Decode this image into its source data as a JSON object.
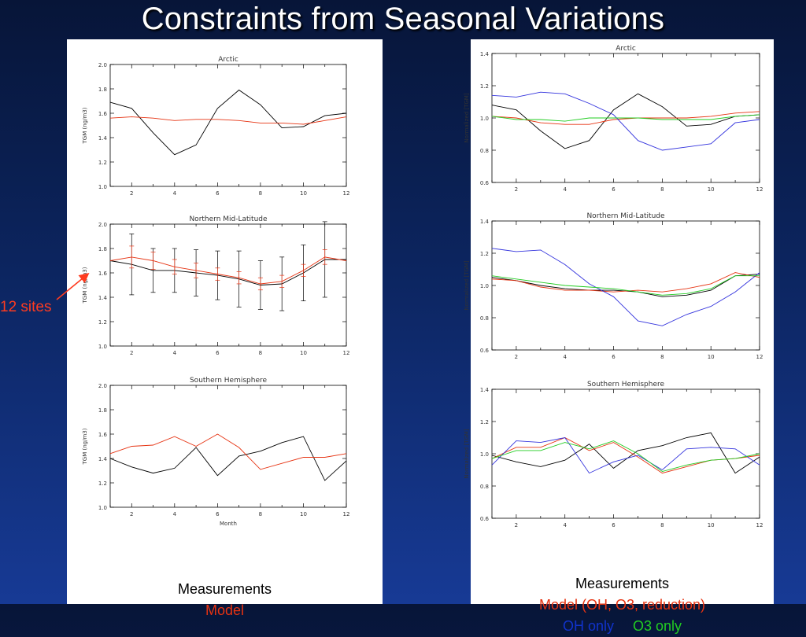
{
  "title": "Constraints from Seasonal Variations",
  "annotation": {
    "label": "12 sites"
  },
  "legends": {
    "left": {
      "line1": "Measurements",
      "line2": "Model"
    },
    "right": {
      "line1": "Measurements",
      "line2": "Model (OH, O3, reduction)",
      "oh": "OH only",
      "o3": "O3 only"
    }
  },
  "colors": {
    "measurements": "#000000",
    "model": "#e63312",
    "oh_only": "#3333dd",
    "o3_only": "#22cc22"
  },
  "chart_data": [
    {
      "type": "line",
      "title": "Arctic",
      "xlabel": "",
      "ylabel": "TGM (ng/m3)",
      "xlim": [
        1,
        12
      ],
      "ylim": [
        1.0,
        2.0
      ],
      "xticks": [
        2,
        4,
        6,
        8,
        10,
        12
      ],
      "yticks": [
        1.0,
        1.2,
        1.4,
        1.6,
        1.8,
        2.0
      ],
      "ytick_decimals": 1,
      "x": [
        1,
        2,
        3,
        4,
        5,
        6,
        7,
        8,
        9,
        10,
        11,
        12
      ],
      "series": [
        {
          "color": "#000000",
          "values": [
            1.69,
            1.64,
            1.44,
            1.26,
            1.34,
            1.64,
            1.79,
            1.67,
            1.48,
            1.49,
            1.58,
            1.6
          ]
        },
        {
          "color": "#e63312",
          "values": [
            1.56,
            1.57,
            1.56,
            1.54,
            1.55,
            1.55,
            1.54,
            1.52,
            1.52,
            1.51,
            1.54,
            1.57
          ]
        }
      ]
    },
    {
      "type": "line",
      "title": "Northern Mid-Latitude",
      "xlabel": "",
      "ylabel": "TGM (ng/m3)",
      "xlim": [
        1,
        12
      ],
      "ylim": [
        1.0,
        2.0
      ],
      "xticks": [
        2,
        4,
        6,
        8,
        10,
        12
      ],
      "yticks": [
        1.0,
        1.2,
        1.4,
        1.6,
        1.8,
        2.0
      ],
      "ytick_decimals": 1,
      "x": [
        1,
        2,
        3,
        4,
        5,
        6,
        7,
        8,
        9,
        10,
        11,
        12
      ],
      "series": [
        {
          "color": "#000000",
          "values": [
            1.7,
            1.67,
            1.62,
            1.62,
            1.6,
            1.58,
            1.55,
            1.5,
            1.51,
            1.6,
            1.71,
            1.71
          ],
          "errors": [
            0,
            0.25,
            0.18,
            0.18,
            0.19,
            0.2,
            0.23,
            0.2,
            0.22,
            0.23,
            0.31,
            0
          ]
        },
        {
          "color": "#e63312",
          "values": [
            1.7,
            1.73,
            1.7,
            1.65,
            1.62,
            1.59,
            1.56,
            1.51,
            1.53,
            1.62,
            1.73,
            1.7
          ],
          "errors": [
            0,
            0.09,
            0.07,
            0.06,
            0.06,
            0.05,
            0.05,
            0.05,
            0.05,
            0.05,
            0.06,
            0
          ]
        }
      ]
    },
    {
      "type": "line",
      "title": "Southern Hemisphere",
      "xlabel": "Month",
      "ylabel": "TGM (ng/m3)",
      "xlim": [
        1,
        12
      ],
      "ylim": [
        1.0,
        2.0
      ],
      "xticks": [
        2,
        4,
        6,
        8,
        10,
        12
      ],
      "yticks": [
        1.0,
        1.2,
        1.4,
        1.6,
        1.8,
        2.0
      ],
      "ytick_decimals": 1,
      "x": [
        1,
        2,
        3,
        4,
        5,
        6,
        7,
        8,
        9,
        10,
        11,
        12
      ],
      "series": [
        {
          "color": "#000000",
          "values": [
            1.4,
            1.33,
            1.28,
            1.32,
            1.49,
            1.26,
            1.42,
            1.46,
            1.53,
            1.58,
            1.22,
            1.38
          ]
        },
        {
          "color": "#e63312",
          "values": [
            1.44,
            1.5,
            1.51,
            1.58,
            1.5,
            1.6,
            1.49,
            1.31,
            1.36,
            1.41,
            1.41,
            1.44
          ]
        }
      ]
    },
    {
      "type": "line",
      "title": "Arctic",
      "xlabel": "",
      "ylabel": "Normalized [TGM]",
      "xlim": [
        1,
        12
      ],
      "ylim": [
        0.6,
        1.4
      ],
      "xticks": [
        2,
        4,
        6,
        8,
        10,
        12
      ],
      "yticks": [
        0.6,
        0.8,
        1.0,
        1.2,
        1.4
      ],
      "ytick_decimals": 1,
      "x": [
        1,
        2,
        3,
        4,
        5,
        6,
        7,
        8,
        9,
        10,
        11,
        12
      ],
      "series": [
        {
          "color": "#000000",
          "values": [
            1.08,
            1.05,
            0.92,
            0.81,
            0.86,
            1.05,
            1.15,
            1.07,
            0.95,
            0.96,
            1.01,
            1.02
          ]
        },
        {
          "color": "#e63312",
          "values": [
            1.01,
            1.0,
            0.97,
            0.96,
            0.96,
            0.99,
            1.0,
            1.0,
            1.0,
            1.01,
            1.03,
            1.04
          ]
        },
        {
          "color": "#3333dd",
          "values": [
            1.14,
            1.13,
            1.16,
            1.15,
            1.09,
            1.02,
            0.86,
            0.8,
            0.82,
            0.84,
            0.97,
            0.99
          ]
        },
        {
          "color": "#22cc22",
          "values": [
            1.01,
            0.99,
            0.99,
            0.98,
            1.0,
            1.0,
            1.0,
            0.99,
            0.99,
            0.99,
            1.01,
            1.02
          ]
        }
      ]
    },
    {
      "type": "line",
      "title": "Northern Mid-Latitude",
      "xlabel": "",
      "ylabel": "Normalized [TGM]",
      "xlim": [
        1,
        12
      ],
      "ylim": [
        0.6,
        1.4
      ],
      "xticks": [
        2,
        4,
        6,
        8,
        10,
        12
      ],
      "yticks": [
        0.6,
        0.8,
        1.0,
        1.2,
        1.4
      ],
      "ytick_decimals": 1,
      "x": [
        1,
        2,
        3,
        4,
        5,
        6,
        7,
        8,
        9,
        10,
        11,
        12
      ],
      "series": [
        {
          "color": "#000000",
          "values": [
            1.05,
            1.03,
            1.0,
            0.98,
            0.97,
            0.97,
            0.96,
            0.93,
            0.94,
            0.97,
            1.06,
            1.07
          ]
        },
        {
          "color": "#e63312",
          "values": [
            1.04,
            1.03,
            0.99,
            0.97,
            0.97,
            0.96,
            0.97,
            0.96,
            0.98,
            1.01,
            1.08,
            1.05
          ]
        },
        {
          "color": "#3333dd",
          "values": [
            1.23,
            1.21,
            1.22,
            1.13,
            1.01,
            0.93,
            0.78,
            0.75,
            0.82,
            0.87,
            0.96,
            1.08
          ]
        },
        {
          "color": "#22cc22",
          "values": [
            1.06,
            1.04,
            1.02,
            1.0,
            0.99,
            0.98,
            0.96,
            0.94,
            0.95,
            0.98,
            1.06,
            1.06
          ]
        }
      ]
    },
    {
      "type": "line",
      "title": "Southern Hemisphere",
      "xlabel": "",
      "ylabel": "Normalized [TGM]",
      "xlim": [
        1,
        12
      ],
      "ylim": [
        0.6,
        1.4
      ],
      "xticks": [
        2,
        4,
        6,
        8,
        10,
        12
      ],
      "yticks": [
        0.6,
        0.8,
        1.0,
        1.2,
        1.4
      ],
      "ytick_decimals": 1,
      "x": [
        1,
        2,
        3,
        4,
        5,
        6,
        7,
        8,
        9,
        10,
        11,
        12
      ],
      "series": [
        {
          "color": "#000000",
          "values": [
            0.99,
            0.95,
            0.92,
            0.96,
            1.06,
            0.91,
            1.02,
            1.05,
            1.1,
            1.13,
            0.88,
            0.98
          ]
        },
        {
          "color": "#e63312",
          "values": [
            0.97,
            1.04,
            1.04,
            1.1,
            1.02,
            1.07,
            0.98,
            0.88,
            0.92,
            0.96,
            0.97,
            0.99
          ]
        },
        {
          "color": "#3333dd",
          "values": [
            0.93,
            1.08,
            1.07,
            1.1,
            0.88,
            0.95,
            0.99,
            0.9,
            1.03,
            1.04,
            1.03,
            0.93
          ]
        },
        {
          "color": "#22cc22",
          "values": [
            0.97,
            1.02,
            1.02,
            1.07,
            1.03,
            1.08,
            1.0,
            0.89,
            0.93,
            0.96,
            0.97,
            1.0
          ]
        }
      ]
    }
  ]
}
